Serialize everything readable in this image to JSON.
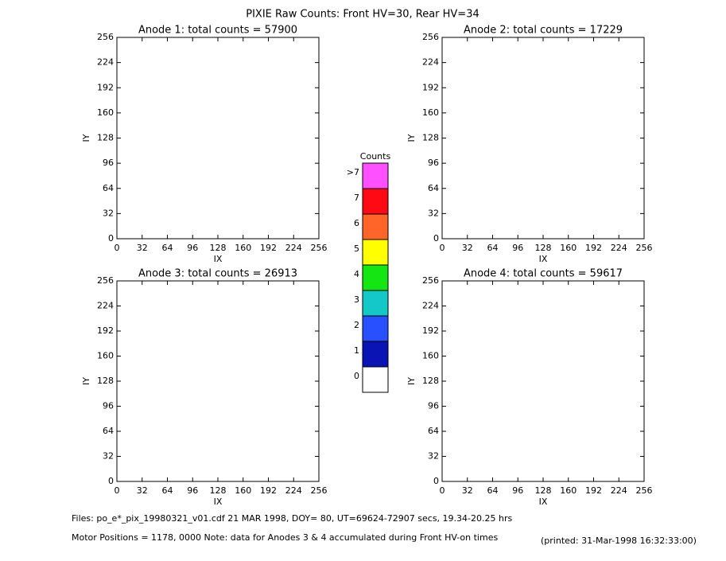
{
  "title": "PIXIE Raw Counts:  Front HV=30, Rear HV=34",
  "chart_data": [
    {
      "type": "heatmap",
      "title": "Anode 1: total counts = 57900",
      "xlabel": "IX",
      "ylabel": "IY",
      "xlim": [
        0,
        256
      ],
      "ylim": [
        0,
        256
      ],
      "xticks": [
        0,
        32,
        64,
        96,
        128,
        160,
        192,
        224,
        256
      ],
      "yticks": [
        0,
        32,
        64,
        96,
        128,
        160,
        192,
        224,
        256
      ]
    },
    {
      "type": "heatmap",
      "title": "Anode 2: total counts = 17229",
      "xlabel": "IX",
      "ylabel": "IY",
      "xlim": [
        0,
        256
      ],
      "ylim": [
        0,
        256
      ],
      "xticks": [
        0,
        32,
        64,
        96,
        128,
        160,
        192,
        224,
        256
      ],
      "yticks": [
        0,
        32,
        64,
        96,
        128,
        160,
        192,
        224,
        256
      ]
    },
    {
      "type": "heatmap",
      "title": "Anode 3: total counts = 26913",
      "xlabel": "IX",
      "ylabel": "IY",
      "xlim": [
        0,
        256
      ],
      "ylim": [
        0,
        256
      ],
      "xticks": [
        0,
        32,
        64,
        96,
        128,
        160,
        192,
        224,
        256
      ],
      "yticks": [
        0,
        32,
        64,
        96,
        128,
        160,
        192,
        224,
        256
      ]
    },
    {
      "type": "heatmap",
      "title": "Anode 4: total counts = 59617",
      "xlabel": "IX",
      "ylabel": "IY",
      "xlim": [
        0,
        256
      ],
      "ylim": [
        0,
        256
      ],
      "xticks": [
        0,
        32,
        64,
        96,
        128,
        160,
        192,
        224,
        256
      ],
      "yticks": [
        0,
        32,
        64,
        96,
        128,
        160,
        192,
        224,
        256
      ]
    }
  ],
  "colorbar": {
    "title": "Counts",
    "levels": [
      {
        "value": 0,
        "label": "0",
        "color": "#ffffff"
      },
      {
        "value": 1,
        "label": "1",
        "color": "#0a14b4"
      },
      {
        "value": 2,
        "label": "2",
        "color": "#2850ff"
      },
      {
        "value": 3,
        "label": "3",
        "color": "#14c8c8"
      },
      {
        "value": 4,
        "label": "4",
        "color": "#14e614"
      },
      {
        "value": 5,
        "label": "5",
        "color": "#ffff00"
      },
      {
        "value": 6,
        "label": "6",
        "color": "#ff6428"
      },
      {
        "value": 7,
        "label": "7",
        "color": "#ff0a14"
      },
      {
        "value": 8,
        "label": ">7",
        "color": "#ff50ff"
      }
    ]
  },
  "footer": {
    "files": "Files: po_e*_pix_19980321_v01.cdf   21 MAR 1998, DOY= 80, UT=69624-72907 secs, 19.34-20.25 hrs",
    "motor": "Motor Positions = 1178, 0000   Note: data for Anodes 3 & 4 accumulated during Front HV-on times",
    "printed": "(printed: 31-Mar-1998 16:32:33:00)"
  }
}
